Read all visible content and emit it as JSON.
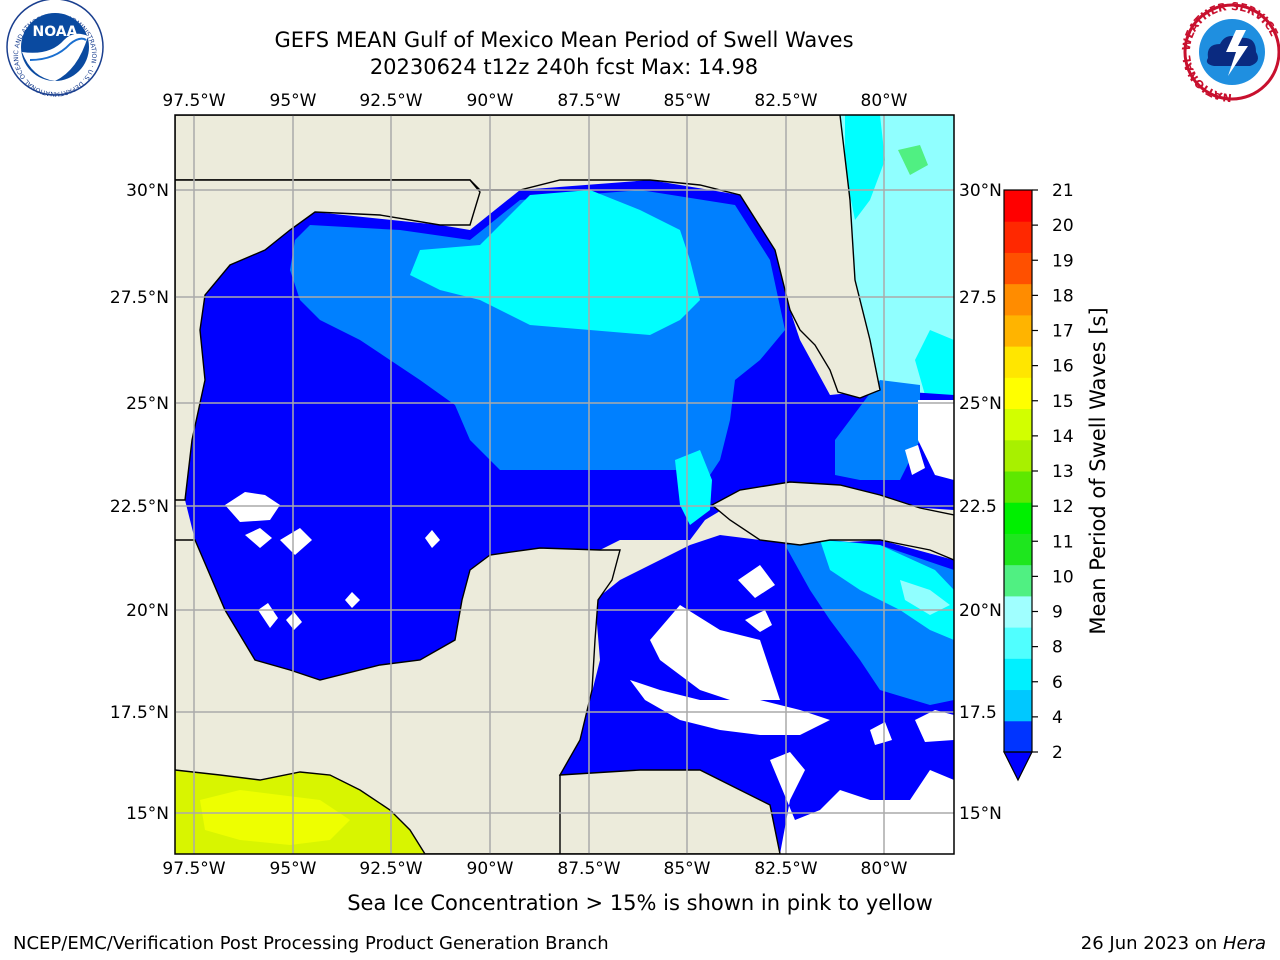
{
  "title_line1": "GEFS MEAN Gulf of Mexico Mean Period of Swell Waves",
  "title_line2": "20230624 t12z 240h fcst   Max: 14.98",
  "lon_ticks": [
    "97.5°W",
    "95°W",
    "92.5°W",
    "90°W",
    "87.5°W",
    "85°W",
    "82.5°W",
    "80°W"
  ],
  "lat_ticks_left": [
    "30°N",
    "27.5°N",
    "25°N",
    "22.5°N",
    "20°N",
    "17.5°N",
    "15°N"
  ],
  "lat_ticks_right": [
    "30°N",
    "27.5",
    "25°N",
    "22.5",
    "20°N",
    "17.5",
    "15°N"
  ],
  "colorbar": {
    "label": "Mean Period of Swell Waves [s]",
    "ticks": [
      "2",
      "4",
      "6",
      "8",
      "9",
      "10",
      "11",
      "12",
      "13",
      "14",
      "15",
      "16",
      "17",
      "18",
      "19",
      "20",
      "21"
    ],
    "colors": [
      "#0034ff",
      "#00c8ff",
      "#00f0ff",
      "#50ffff",
      "#a0ffff",
      "#50f082",
      "#1ee61e",
      "#00f000",
      "#5ee800",
      "#a8f000",
      "#d2ff00",
      "#ffff00",
      "#ffe600",
      "#ffb400",
      "#ff8c00",
      "#ff5000",
      "#ff2800",
      "#ff0000"
    ],
    "extend_color": "#0000ff"
  },
  "colors": {
    "land": "#ecebdb",
    "low_period": "#0000ff",
    "mid_period": "#0080ff",
    "cyan_period": "#00ffff",
    "light_cyan": "#90ffff",
    "ice_field": "#d8f500",
    "gridline": "#aaaaaa"
  },
  "logos": {
    "left": {
      "name": "NOAA",
      "ring_text": "NATIONAL OCEANIC AND ATMOSPHERIC ADMINISTRATION · U.S. DEPARTMENT OF COMMERCE"
    },
    "right": {
      "name": "NATIONAL WEATHER SERVICE",
      "ring_text": "NATIONAL WEATHER SERVICE"
    }
  },
  "footnote": "Sea Ice Concentration > 15% is shown in pink to yellow",
  "credit": "NCEP/EMC/Verification Post Processing Product Generation Branch",
  "date_prefix": "26 Jun 2023 on ",
  "date_machine": "Hera"
}
